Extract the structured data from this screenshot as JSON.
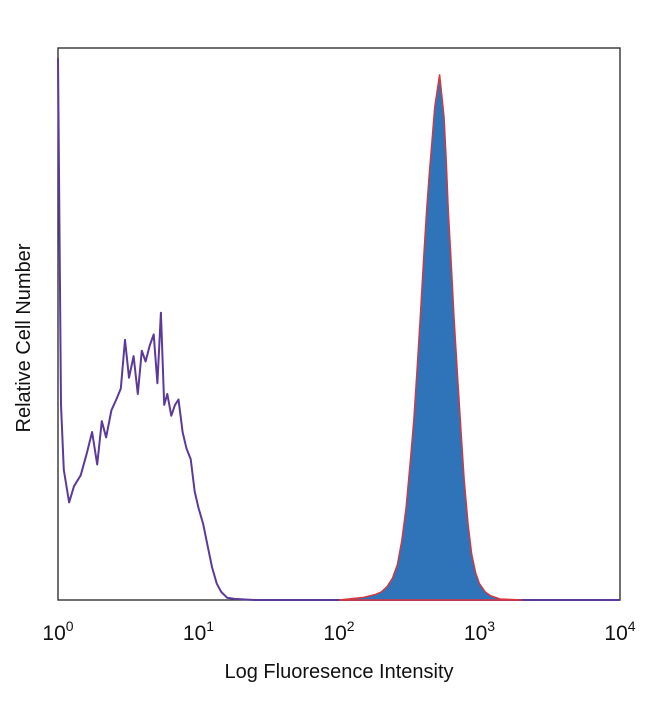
{
  "chart_data": {
    "type": "area",
    "title": "",
    "xlabel": "Log Fluoresence Intensity",
    "ylabel": "Relative Cell Number",
    "x_scale": "log",
    "xlim": [
      1,
      10000
    ],
    "ylim": [
      0,
      100
    ],
    "grid": false,
    "x_ticks": [
      {
        "base": "10",
        "exp": "0",
        "value": 1
      },
      {
        "base": "10",
        "exp": "1",
        "value": 10
      },
      {
        "base": "10",
        "exp": "2",
        "value": 100
      },
      {
        "base": "10",
        "exp": "3",
        "value": 1000
      },
      {
        "base": "10",
        "exp": "4",
        "value": 10000
      }
    ],
    "series": [
      {
        "style": "outline",
        "color": "#5b3a9c",
        "x": [
          1.0,
          1.05,
          1.1,
          1.2,
          1.3,
          1.45,
          1.6,
          1.75,
          1.9,
          2.05,
          2.2,
          2.4,
          2.6,
          2.8,
          3.0,
          3.2,
          3.45,
          3.7,
          3.95,
          4.2,
          4.5,
          4.8,
          5.1,
          5.4,
          5.7,
          6.0,
          6.4,
          6.8,
          7.2,
          7.7,
          8.2,
          8.8,
          9.4,
          10.0,
          10.8,
          11.6,
          12.5,
          13.5,
          14.5,
          16.0,
          18.0,
          25.0,
          100.0,
          1000.0,
          10000.0
        ],
        "y": [
          100,
          36,
          24,
          18,
          21,
          23,
          27,
          31,
          25,
          33,
          30,
          35,
          37,
          39,
          48,
          41,
          45,
          38,
          46,
          44,
          47,
          49,
          40,
          53,
          36,
          38,
          34,
          36,
          37,
          31,
          28,
          26,
          20,
          17,
          14,
          10,
          6,
          3,
          1.5,
          0.4,
          0.2,
          0,
          0,
          0,
          0
        ]
      },
      {
        "style": "filled",
        "color": "#2f73b8",
        "outline": "#d9363e",
        "x": [
          100,
          150,
          180,
          200,
          220,
          240,
          260,
          280,
          300,
          320,
          340,
          360,
          380,
          400,
          420,
          440,
          460,
          480,
          500,
          520,
          540,
          560,
          580,
          600,
          630,
          660,
          700,
          740,
          780,
          830,
          880,
          940,
          1000,
          1100,
          1200,
          1400,
          2000
        ],
        "y": [
          0,
          0.5,
          1,
          1.5,
          2.5,
          4,
          6.5,
          11,
          17,
          25,
          33,
          43,
          53,
          63,
          72,
          79,
          85,
          91,
          94,
          97,
          93,
          89,
          81,
          72,
          62,
          52,
          41,
          31,
          22,
          14,
          8.5,
          5,
          3,
          1.5,
          0.8,
          0.2,
          0
        ]
      }
    ]
  }
}
